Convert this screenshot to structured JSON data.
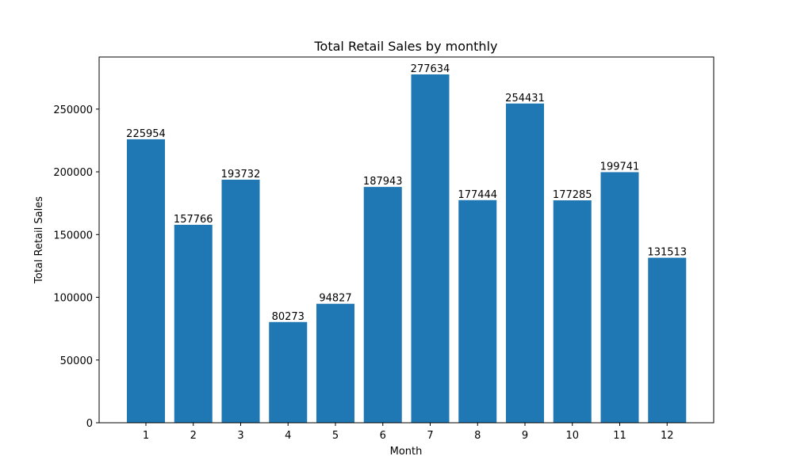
{
  "chart_data": {
    "type": "bar",
    "title": "Total Retail Sales by monthly",
    "xlabel": "Month",
    "ylabel": "Total Retail Sales",
    "categories": [
      "1",
      "2",
      "3",
      "4",
      "5",
      "6",
      "7",
      "8",
      "9",
      "10",
      "11",
      "12"
    ],
    "values": [
      225954,
      157766,
      193732,
      80273,
      94827,
      187943,
      277634,
      177444,
      254431,
      177285,
      199741,
      131513
    ],
    "data_labels": [
      "225954",
      "157766",
      "193732",
      "80273",
      "94827",
      "187943",
      "277634",
      "177444",
      "254431",
      "177285",
      "199741",
      "131513"
    ],
    "ylim": [
      0,
      291516
    ],
    "yticks": [
      0,
      50000,
      100000,
      150000,
      200000,
      250000
    ],
    "ytick_labels": [
      "0",
      "50000",
      "100000",
      "150000",
      "200000",
      "250000"
    ],
    "bar_color": "#1f77b4",
    "grid": false,
    "legend": "none"
  }
}
